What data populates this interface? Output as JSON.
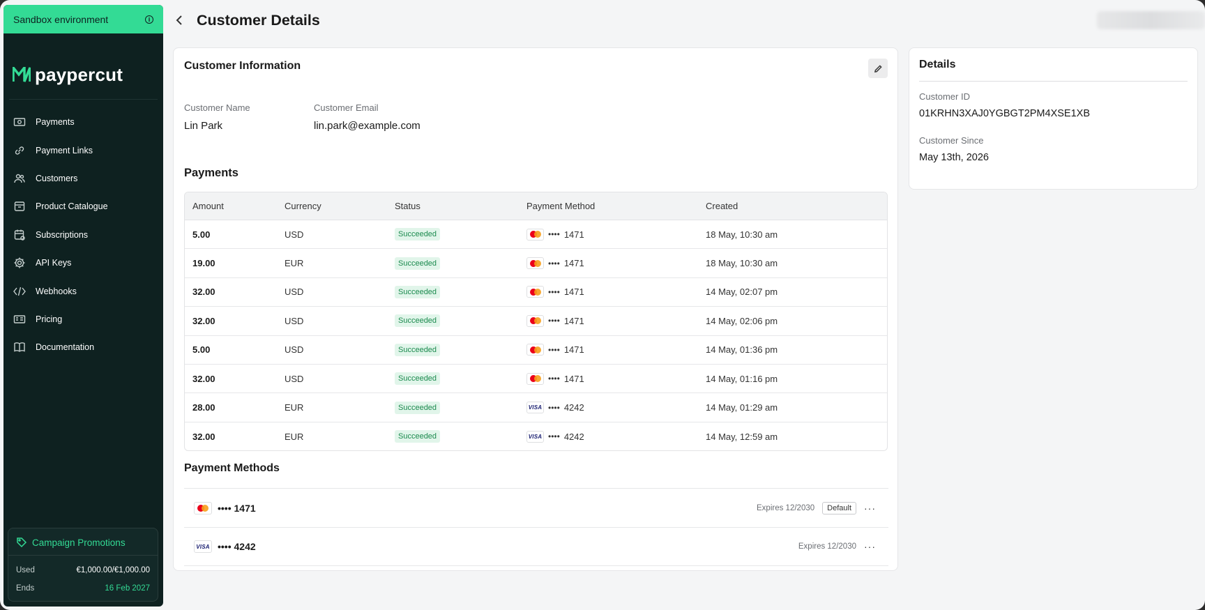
{
  "sidebar": {
    "sandbox_label": "Sandbox environment",
    "logo_text": "paypercut",
    "items": [
      {
        "label": "Payments",
        "icon": "money-icon"
      },
      {
        "label": "Payment Links",
        "icon": "link-icon"
      },
      {
        "label": "Customers",
        "icon": "users-icon"
      },
      {
        "label": "Product Catalogue",
        "icon": "box-icon"
      },
      {
        "label": "Subscriptions",
        "icon": "calendar-icon"
      },
      {
        "label": "API Keys",
        "icon": "gear-icon"
      },
      {
        "label": "Webhooks",
        "icon": "code-icon"
      },
      {
        "label": "Pricing",
        "icon": "pricing-icon"
      },
      {
        "label": "Documentation",
        "icon": "book-icon"
      }
    ],
    "promo": {
      "title": "Campaign Promotions",
      "used_label": "Used",
      "used_value": "€1,000.00/€1,000.00",
      "ends_label": "Ends",
      "ends_value": "16 Feb 2027"
    }
  },
  "header": {
    "title": "Customer Details"
  },
  "customer_info": {
    "title": "Customer Information",
    "name_label": "Customer Name",
    "name_value": "Lin Park",
    "email_label": "Customer Email",
    "email_value": "lin.park@example.com"
  },
  "payments": {
    "title": "Payments",
    "columns": [
      "Amount",
      "Currency",
      "Status",
      "Payment Method",
      "Created"
    ],
    "rows": [
      {
        "amount": "5.00",
        "currency": "USD",
        "status": "Succeeded",
        "brand": "mastercard",
        "last4": "1471",
        "created": "18 May, 10:30 am"
      },
      {
        "amount": "19.00",
        "currency": "EUR",
        "status": "Succeeded",
        "brand": "mastercard",
        "last4": "1471",
        "created": "18 May, 10:30 am"
      },
      {
        "amount": "32.00",
        "currency": "USD",
        "status": "Succeeded",
        "brand": "mastercard",
        "last4": "1471",
        "created": "14 May, 02:07 pm"
      },
      {
        "amount": "32.00",
        "currency": "USD",
        "status": "Succeeded",
        "brand": "mastercard",
        "last4": "1471",
        "created": "14 May, 02:06 pm"
      },
      {
        "amount": "5.00",
        "currency": "USD",
        "status": "Succeeded",
        "brand": "mastercard",
        "last4": "1471",
        "created": "14 May, 01:36 pm"
      },
      {
        "amount": "32.00",
        "currency": "USD",
        "status": "Succeeded",
        "brand": "mastercard",
        "last4": "1471",
        "created": "14 May, 01:16 pm"
      },
      {
        "amount": "28.00",
        "currency": "EUR",
        "status": "Succeeded",
        "brand": "visa",
        "last4": "4242",
        "created": "14 May, 01:29 am"
      },
      {
        "amount": "32.00",
        "currency": "EUR",
        "status": "Succeeded",
        "brand": "visa",
        "last4": "4242",
        "created": "14 May, 12:59 am"
      }
    ]
  },
  "payment_methods": {
    "title": "Payment Methods",
    "items": [
      {
        "brand": "mastercard",
        "number": "•••• 1471",
        "expires": "Expires 12/2030",
        "badge": "Default"
      },
      {
        "brand": "visa",
        "number": "•••• 4242",
        "expires": "Expires 12/2030",
        "badge": ""
      }
    ]
  },
  "details": {
    "title": "Details",
    "id_label": "Customer ID",
    "id_value": "01KRHN3XAJ0YGBGT2PM4XSE1XB",
    "since_label": "Customer Since",
    "since_value": "May 13th, 2026"
  },
  "dots_text": "••••",
  "visa_text": "VISA",
  "more_text": "···",
  "colors": {
    "sidebar_bg": "#0e2120",
    "accent": "#33db95",
    "success_bg": "#e1f5ea",
    "success_text": "#1b8a4e"
  }
}
